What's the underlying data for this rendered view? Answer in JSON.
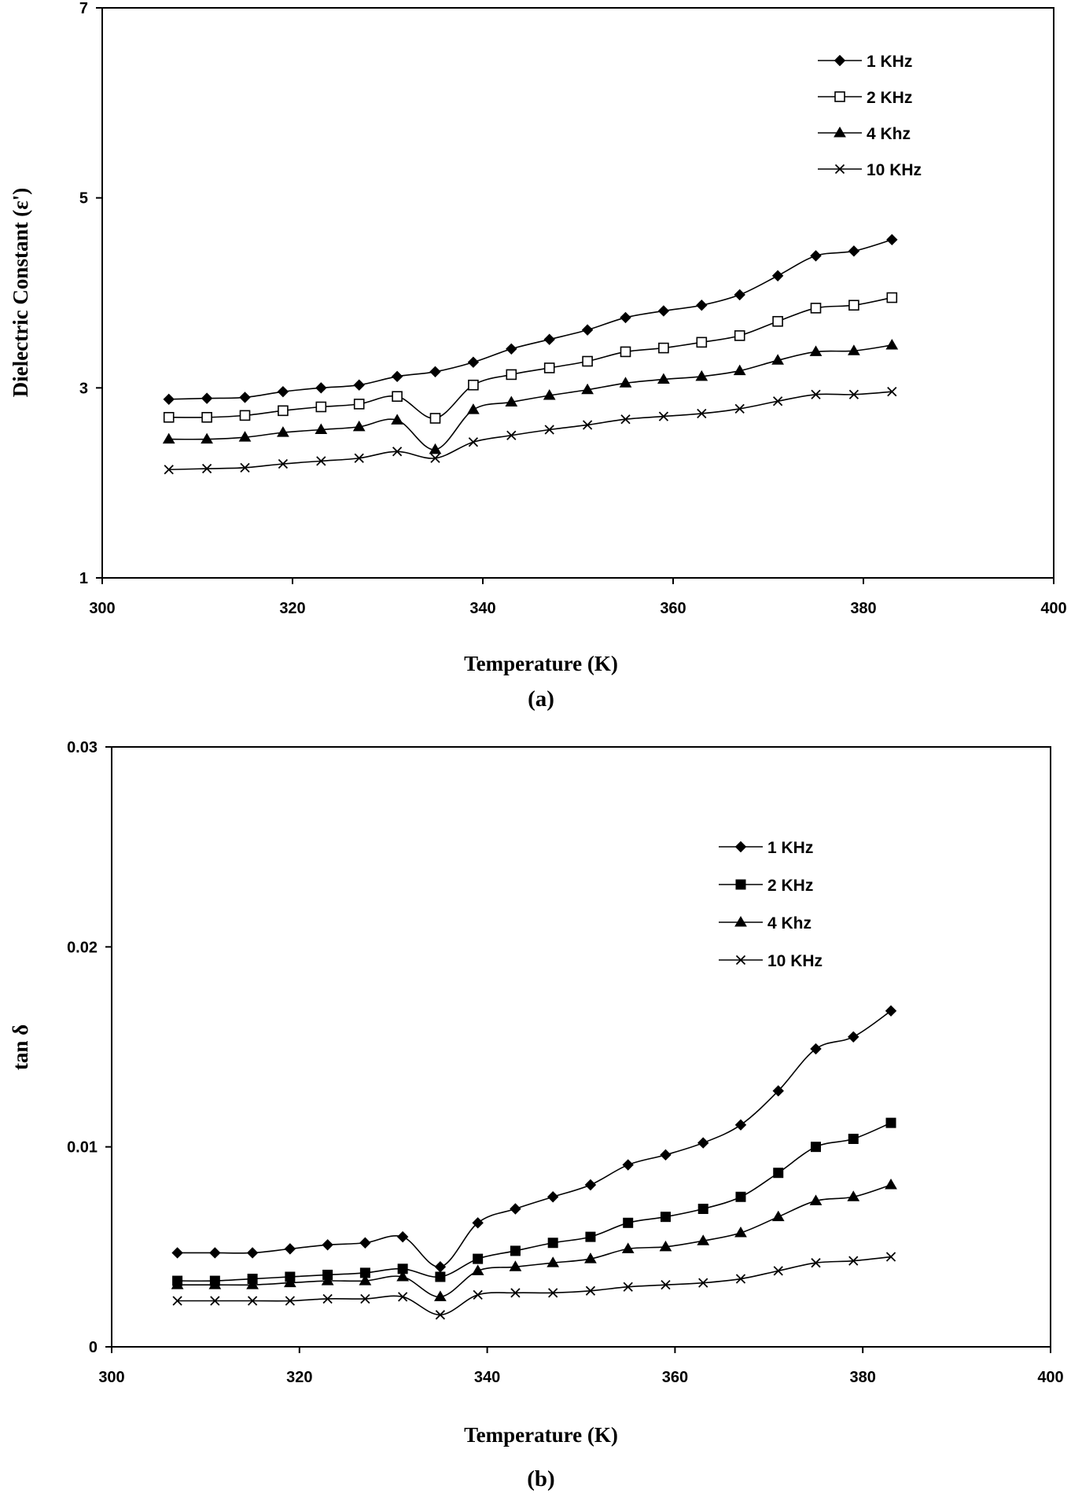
{
  "chart_data": [
    {
      "type": "line",
      "panel_label": "(a)",
      "xlabel": "Temperature (K)",
      "ylabel": "Dielectric Constant (ε')",
      "xlim": [
        300,
        400
      ],
      "ylim": [
        1,
        7
      ],
      "xticks": [
        "300",
        "320",
        "340",
        "360",
        "380",
        "400"
      ],
      "yticks": [
        "1",
        "3",
        "5",
        "7"
      ],
      "x": [
        307,
        311,
        315,
        319,
        323,
        327,
        331,
        335,
        339,
        343,
        347,
        351,
        355,
        359,
        363,
        367,
        371,
        375,
        379,
        383
      ],
      "series": [
        {
          "name": "1 KHz",
          "marker": "diamond",
          "values": [
            2.88,
            2.89,
            2.9,
            2.96,
            3.0,
            3.03,
            3.12,
            3.17,
            3.27,
            3.41,
            3.51,
            3.61,
            3.74,
            3.81,
            3.87,
            3.98,
            4.18,
            4.39,
            4.44,
            4.56
          ]
        },
        {
          "name": "2 KHz",
          "marker": "square-open",
          "values": [
            2.69,
            2.69,
            2.71,
            2.76,
            2.8,
            2.83,
            2.91,
            2.68,
            3.03,
            3.14,
            3.21,
            3.28,
            3.38,
            3.42,
            3.48,
            3.55,
            3.7,
            3.84,
            3.87,
            3.95
          ]
        },
        {
          "name": "4 Khz",
          "marker": "triangle",
          "values": [
            2.46,
            2.46,
            2.48,
            2.53,
            2.56,
            2.59,
            2.66,
            2.35,
            2.77,
            2.85,
            2.92,
            2.98,
            3.05,
            3.09,
            3.12,
            3.18,
            3.29,
            3.38,
            3.39,
            3.45
          ]
        },
        {
          "name": "10 KHz",
          "marker": "x",
          "values": [
            2.14,
            2.15,
            2.16,
            2.2,
            2.23,
            2.26,
            2.33,
            2.26,
            2.43,
            2.5,
            2.56,
            2.61,
            2.67,
            2.7,
            2.73,
            2.78,
            2.86,
            2.93,
            2.93,
            2.96
          ]
        }
      ]
    },
    {
      "type": "line",
      "panel_label": "(b)",
      "xlabel": "Temperature (K)",
      "ylabel": "tan δ",
      "xlim": [
        300,
        400
      ],
      "ylim": [
        0,
        0.03
      ],
      "xticks": [
        "300",
        "320",
        "340",
        "360",
        "380",
        "400"
      ],
      "yticks": [
        "0",
        "0.01",
        "0.02",
        "0.03"
      ],
      "x": [
        307,
        311,
        315,
        319,
        323,
        327,
        331,
        335,
        339,
        343,
        347,
        351,
        355,
        359,
        363,
        367,
        371,
        375,
        379,
        383
      ],
      "series": [
        {
          "name": "1 KHz",
          "marker": "diamond",
          "values": [
            0.0047,
            0.0047,
            0.0047,
            0.0049,
            0.0051,
            0.0052,
            0.0055,
            0.004,
            0.0062,
            0.0069,
            0.0075,
            0.0081,
            0.0091,
            0.0096,
            0.0102,
            0.0111,
            0.0128,
            0.0149,
            0.0155,
            0.0168
          ]
        },
        {
          "name": "2 KHz",
          "marker": "square",
          "values": [
            0.0033,
            0.0033,
            0.0034,
            0.0035,
            0.0036,
            0.0037,
            0.0039,
            0.0035,
            0.0044,
            0.0048,
            0.0052,
            0.0055,
            0.0062,
            0.0065,
            0.0069,
            0.0075,
            0.0087,
            0.01,
            0.0104,
            0.0112
          ]
        },
        {
          "name": "4 Khz",
          "marker": "triangle",
          "values": [
            0.0031,
            0.0031,
            0.0031,
            0.0032,
            0.0033,
            0.0033,
            0.0035,
            0.0025,
            0.0038,
            0.004,
            0.0042,
            0.0044,
            0.0049,
            0.005,
            0.0053,
            0.0057,
            0.0065,
            0.0073,
            0.0075,
            0.0081
          ]
        },
        {
          "name": "10 KHz",
          "marker": "x",
          "values": [
            0.0023,
            0.0023,
            0.0023,
            0.0023,
            0.0024,
            0.0024,
            0.0025,
            0.0016,
            0.0026,
            0.0027,
            0.0027,
            0.0028,
            0.003,
            0.0031,
            0.0032,
            0.0034,
            0.0038,
            0.0042,
            0.0043,
            0.0045
          ]
        }
      ]
    }
  ]
}
